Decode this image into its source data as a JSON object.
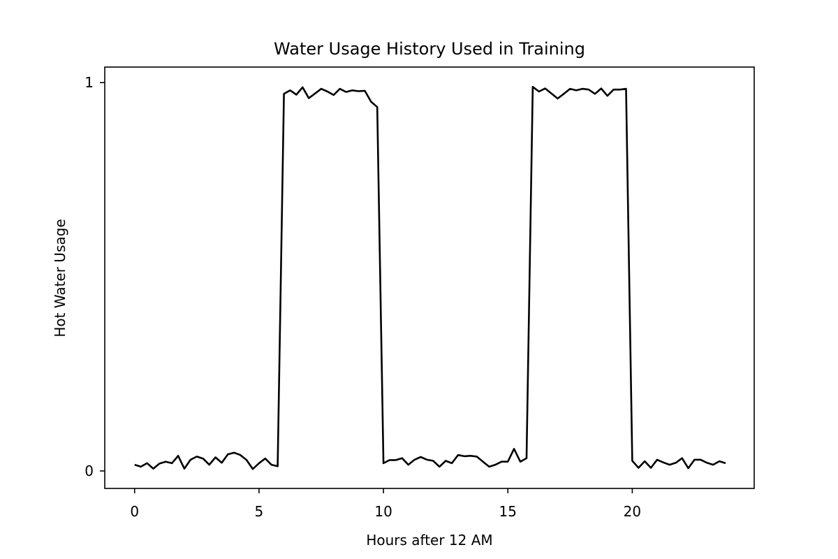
{
  "chart_data": {
    "type": "line",
    "title": "Water Usage History Used in Training",
    "xlabel": "Hours after 12 AM",
    "ylabel": "Hot Water Usage",
    "xlim": [
      -1.2,
      24.9
    ],
    "ylim": [
      -0.045,
      1.04
    ],
    "x_ticks": [
      0,
      5,
      10,
      15,
      20
    ],
    "x_tick_labels": [
      "0",
      "5",
      "10",
      "15",
      "20"
    ],
    "y_ticks": [
      0,
      1
    ],
    "y_tick_labels": [
      "0",
      "1"
    ],
    "grid": false,
    "line_color": "#000000",
    "series": [
      {
        "x": [
          0,
          0.25,
          0.5,
          0.75,
          1,
          1.25,
          1.5,
          1.75,
          2,
          2.25,
          2.5,
          2.75,
          3,
          3.25,
          3.5,
          3.75,
          4,
          4.25,
          4.5,
          4.75,
          5,
          5.25,
          5.5,
          5.75,
          6,
          6.25,
          6.5,
          6.75,
          7,
          7.25,
          7.5,
          7.75,
          8,
          8.25,
          8.5,
          8.75,
          9,
          9.25,
          9.5,
          9.75,
          10,
          10.25,
          10.5,
          10.75,
          11,
          11.25,
          11.5,
          11.75,
          12,
          12.25,
          12.5,
          12.75,
          13,
          13.25,
          13.5,
          13.75,
          14,
          14.25,
          14.5,
          14.75,
          15,
          15.25,
          15.5,
          15.75,
          16,
          16.25,
          16.5,
          16.75,
          17,
          17.25,
          17.5,
          17.75,
          18,
          18.25,
          18.5,
          18.75,
          19,
          19.25,
          19.5,
          19.75,
          20,
          20.25,
          20.5,
          20.75,
          21,
          21.25,
          21.5,
          21.75,
          22,
          22.25,
          22.5,
          22.75,
          23,
          23.25,
          23.5,
          23.75
        ],
        "y": [
          0.016,
          0.011,
          0.02,
          0.006,
          0.019,
          0.024,
          0.02,
          0.039,
          0.006,
          0.029,
          0.037,
          0.032,
          0.016,
          0.035,
          0.021,
          0.043,
          0.047,
          0.041,
          0.028,
          0.005,
          0.02,
          0.032,
          0.016,
          0.012,
          0.971,
          0.98,
          0.969,
          0.988,
          0.96,
          0.972,
          0.984,
          0.977,
          0.968,
          0.984,
          0.976,
          0.98,
          0.978,
          0.979,
          0.951,
          0.937,
          0.02,
          0.028,
          0.028,
          0.033,
          0.016,
          0.029,
          0.036,
          0.029,
          0.026,
          0.011,
          0.026,
          0.02,
          0.041,
          0.038,
          0.039,
          0.037,
          0.024,
          0.011,
          0.016,
          0.024,
          0.024,
          0.057,
          0.024,
          0.033,
          0.989,
          0.977,
          0.985,
          0.972,
          0.959,
          0.971,
          0.984,
          0.98,
          0.984,
          0.982,
          0.971,
          0.985,
          0.966,
          0.982,
          0.982,
          0.984,
          0.026,
          0.008,
          0.025,
          0.008,
          0.029,
          0.022,
          0.016,
          0.021,
          0.033,
          0.007,
          0.029,
          0.029,
          0.021,
          0.016,
          0.025,
          0.02
        ]
      }
    ]
  }
}
